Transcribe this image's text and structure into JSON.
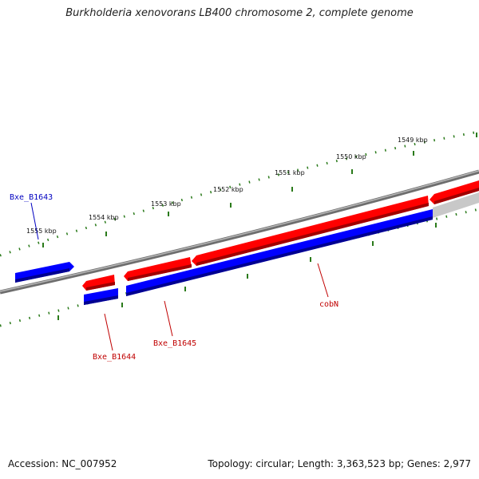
{
  "title": "Burkholderia xenovorans LB400 chromosome 2, complete genome",
  "footer": {
    "accession": "Accession: NC_007952",
    "summary": "Topology: circular; Length: 3,363,523 bp; Genes: 2,977"
  },
  "scale_labels": [
    "1555 kbp",
    "1554 kbp",
    "1553 kbp",
    "1552 kbp",
    "1551 kbp",
    "1550 kbp",
    "1549 kbp"
  ],
  "gene_labels": {
    "bxe_b1643": "Bxe_B1643",
    "bxe_b1644": "Bxe_B1644",
    "bxe_b1645": "Bxe_B1645",
    "cobN": "cobN"
  },
  "colors": {
    "forward_strand": "#ff0000",
    "reverse_strand": "#0000ff",
    "backbone": "#808080",
    "tick": "#2a7a1a",
    "label_forward": "#c00000",
    "label_reverse": "#0000c0"
  }
}
